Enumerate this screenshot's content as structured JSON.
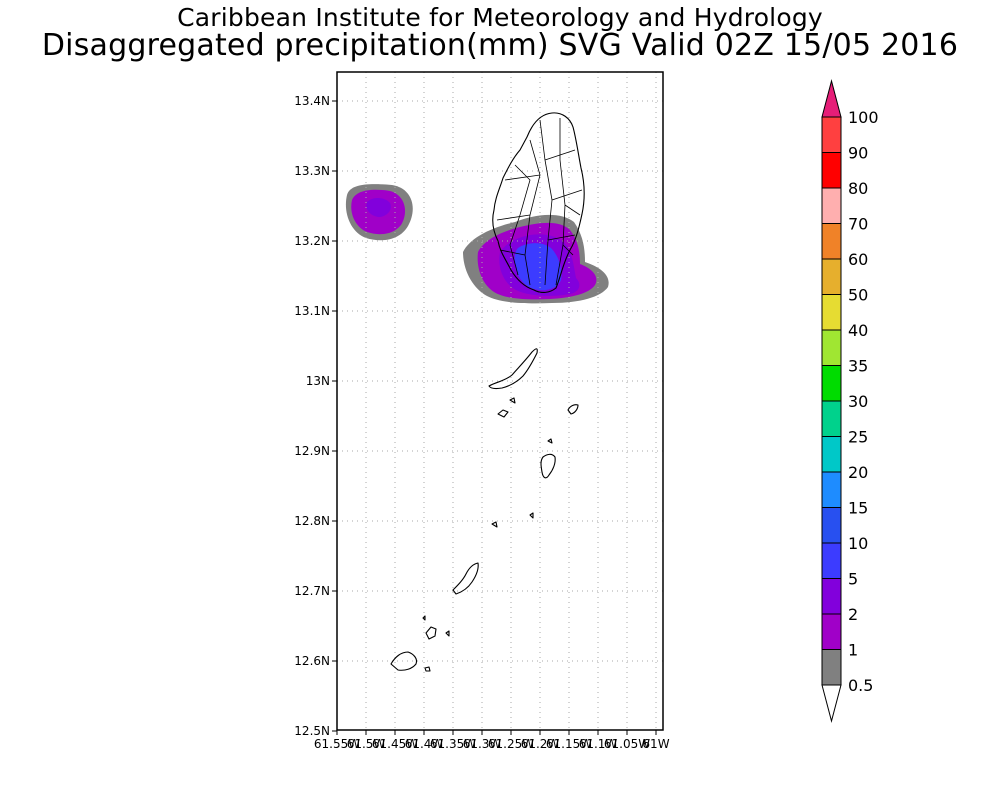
{
  "title": {
    "line1": "Caribbean Institute for Meteorology and Hydrology",
    "line2": "Disaggregated precipitation(mm) SVG Valid 02Z 15/05 2016"
  },
  "axes": {
    "y_ticks": [
      "13.4N",
      "13.3N",
      "13.2N",
      "13.1N",
      "13N",
      "12.9N",
      "12.8N",
      "12.7N",
      "12.6N",
      "12.5N"
    ],
    "x_ticks": [
      "61.55W",
      "61.5W",
      "61.45W",
      "61.4W",
      "61.35W",
      "61.3W",
      "61.25W",
      "61.2W",
      "61.15W",
      "61.1W",
      "61.05W",
      "61W"
    ]
  },
  "colorbar": {
    "labels": [
      "0.5",
      "1",
      "2",
      "5",
      "10",
      "15",
      "20",
      "25",
      "30",
      "35",
      "40",
      "50",
      "60",
      "70",
      "80",
      "90",
      "100"
    ],
    "colors": [
      "#808080",
      "#a000c8",
      "#8200dc",
      "#3c3cff",
      "#2850f0",
      "#1e8cff",
      "#00c8c8",
      "#00d28c",
      "#00dc00",
      "#a0e632",
      "#e6dc32",
      "#e6af2d",
      "#f08228",
      "#ffafaf",
      "#ff0000",
      "#ff4040"
    ],
    "over_color": "#e61e78",
    "under_color": "#ffffff"
  },
  "precip_colors": {
    "gray": "#808080",
    "purple": "#a000c8",
    "violet": "#8200dc",
    "blue": "#3c3cff"
  }
}
